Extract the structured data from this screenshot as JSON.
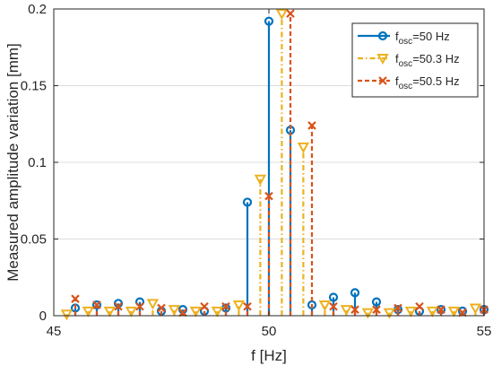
{
  "chart_data": {
    "type": "stem",
    "xlabel": "f [Hz]",
    "ylabel": "Measured amplitude variation [mm]",
    "xlim": [
      45,
      55
    ],
    "ylim": [
      0,
      0.2
    ],
    "x_ticks": [
      "45",
      "50",
      "55"
    ],
    "y_ticks": [
      "0",
      "0.05",
      "0.1",
      "0.15",
      "0.2"
    ],
    "grid": true,
    "legend_placement": "top-right",
    "series": [
      {
        "name_main": "f",
        "name_sub": "osc",
        "name_rest": "=50 Hz",
        "color": "#0072BD",
        "marker": "circle",
        "line_style": "solid",
        "x": [
          45.5,
          46.0,
          46.5,
          47.0,
          47.5,
          48.0,
          48.5,
          49.0,
          49.5,
          50.0,
          50.5,
          51.0,
          51.5,
          52.0,
          52.5,
          53.0,
          53.5,
          54.0,
          54.5,
          55.0
        ],
        "y": [
          0.005,
          0.007,
          0.008,
          0.009,
          0.003,
          0.004,
          0.003,
          0.005,
          0.074,
          0.192,
          0.121,
          0.007,
          0.012,
          0.015,
          0.009,
          0.004,
          0.003,
          0.004,
          0.003,
          0.004
        ]
      },
      {
        "name_main": "f",
        "name_sub": "osc",
        "name_rest": "=50.3 Hz",
        "color": "#EDB120",
        "marker": "triangle-down",
        "line_style": "dashdot",
        "x": [
          45.3,
          45.8,
          46.3,
          46.8,
          47.3,
          47.8,
          48.3,
          48.8,
          49.3,
          49.8,
          50.3,
          50.8,
          51.3,
          51.8,
          52.3,
          52.8,
          53.3,
          53.8,
          54.3,
          54.8
        ],
        "y": [
          0.001,
          0.003,
          0.003,
          0.003,
          0.008,
          0.004,
          0.003,
          0.003,
          0.007,
          0.089,
          0.197,
          0.11,
          0.007,
          0.004,
          0.002,
          0.002,
          0.003,
          0.003,
          0.003,
          0.005
        ]
      },
      {
        "name_main": "f",
        "name_sub": "osc",
        "name_rest": "=50.5 Hz",
        "color": "#D95319",
        "marker": "x",
        "line_style": "dashed",
        "x": [
          45.5,
          46.0,
          46.5,
          47.0,
          47.5,
          48.0,
          48.5,
          49.0,
          49.5,
          50.0,
          50.5,
          51.0,
          51.5,
          52.0,
          52.5,
          53.0,
          53.5,
          54.0,
          54.5,
          55.0
        ],
        "y": [
          0.011,
          0.007,
          0.006,
          0.006,
          0.005,
          0.002,
          0.006,
          0.006,
          0.006,
          0.078,
          0.197,
          0.124,
          0.006,
          0.004,
          0.004,
          0.005,
          0.006,
          0.004,
          0.002,
          0.004
        ]
      }
    ]
  }
}
